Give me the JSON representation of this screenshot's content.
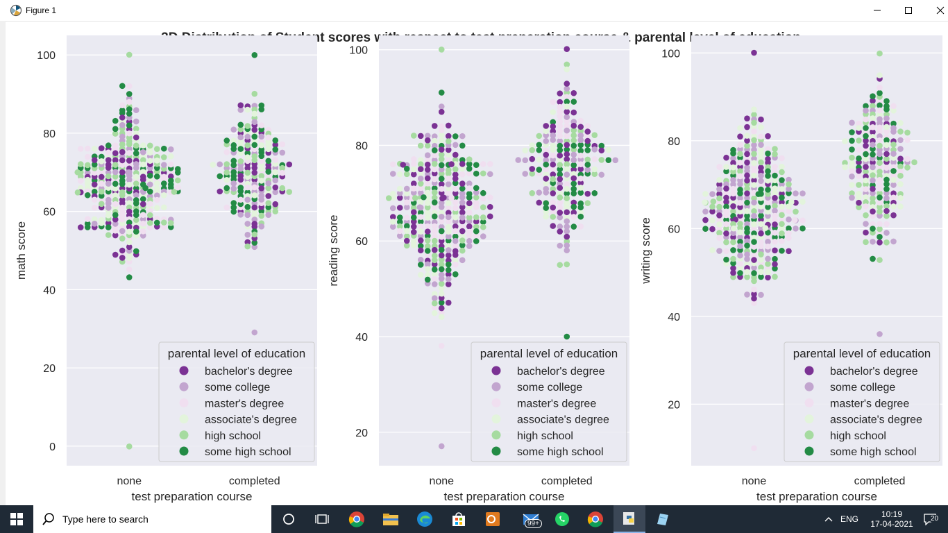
{
  "window": {
    "title": "Figure 1"
  },
  "figure": {
    "suptitle": "3D Distribution of Student scores with respect to test preparation course & parental level of education"
  },
  "colors": {
    "bachelor's degree": "#7b3294",
    "some college": "#c2a5cf",
    "master's degree": "#f0dff0",
    "associate's degree": "#e3f4dc",
    "high school": "#a6dba0",
    "some high school": "#238b45",
    "axes_bg": "#eaeaf2"
  },
  "chart_data": [
    {
      "type": "scatter",
      "subtype": "swarm",
      "xlabel": "test preparation course",
      "ylabel": "math score",
      "categories": [
        "none",
        "completed"
      ],
      "ylim": [
        -5,
        105
      ],
      "yticks": [
        0,
        20,
        40,
        60,
        80,
        100
      ],
      "grid": true,
      "legend": {
        "title": "parental level of education",
        "placement": "lower-right",
        "entries": [
          "bachelor's degree",
          "some college",
          "master's degree",
          "associate's degree",
          "high school",
          "some high school"
        ]
      },
      "groups": [
        {
          "category": "none",
          "range": [
            0,
            100
          ],
          "center": 67,
          "spread": 13
        },
        {
          "category": "completed",
          "range": [
            29,
            100
          ],
          "center": 70,
          "spread": 12
        }
      ]
    },
    {
      "type": "scatter",
      "subtype": "swarm",
      "xlabel": "test preparation course",
      "ylabel": "reading score",
      "categories": [
        "none",
        "completed"
      ],
      "ylim": [
        13,
        103
      ],
      "yticks": [
        20,
        40,
        60,
        80,
        100
      ],
      "grid": true,
      "legend": {
        "title": "parental level of education",
        "placement": "lower-right",
        "entries": [
          "bachelor's degree",
          "some college",
          "master's degree",
          "associate's degree",
          "high school",
          "some high school"
        ]
      },
      "groups": [
        {
          "category": "none",
          "range": [
            17,
            100
          ],
          "center": 67,
          "spread": 13
        },
        {
          "category": "completed",
          "range": [
            40,
            100
          ],
          "center": 75,
          "spread": 12
        }
      ]
    },
    {
      "type": "scatter",
      "subtype": "swarm",
      "xlabel": "test preparation course",
      "ylabel": "writing score",
      "categories": [
        "none",
        "completed"
      ],
      "ylim": [
        6,
        104
      ],
      "yticks": [
        20,
        40,
        60,
        80,
        100
      ],
      "grid": true,
      "legend": {
        "title": "parental level of education",
        "placement": "lower-right",
        "entries": [
          "bachelor's degree",
          "some college",
          "master's degree",
          "associate's degree",
          "high school",
          "some high school"
        ]
      },
      "groups": [
        {
          "category": "none",
          "range": [
            10,
            100
          ],
          "center": 65,
          "spread": 13
        },
        {
          "category": "completed",
          "range": [
            36,
            100
          ],
          "center": 75,
          "spread": 12
        }
      ]
    }
  ],
  "taskbar": {
    "search_placeholder": "Type here to search",
    "language": "ENG",
    "time": "10:19",
    "date": "17-04-2021",
    "mail_badge": "99+",
    "notification_count": "20"
  }
}
